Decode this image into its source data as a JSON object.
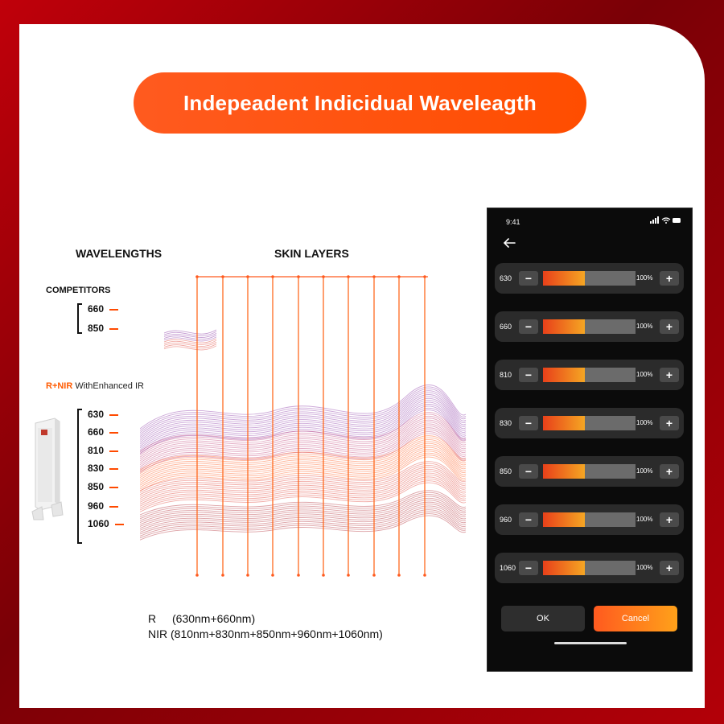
{
  "title": "Indepeadent Indicidual Waveleagth",
  "headers": {
    "wavelengths": "WAVELENGTHS",
    "skin_layers": "SKIN LAYERS"
  },
  "competitors": {
    "title": "COMPETITORS",
    "items": [
      "660",
      "850"
    ]
  },
  "rnir": {
    "accent": "R+NIR",
    "rest": " WithEnhanced IR",
    "items": [
      "630",
      "660",
      "810",
      "830",
      "850",
      "960",
      "1060"
    ]
  },
  "legend": {
    "r_label": "R",
    "r_text": "(630nm+660nm)",
    "nir_text": "NIR (810nm+830nm+850nm+960nm+1060nm)"
  },
  "phone": {
    "time": "9:41",
    "back_icon": "arrow-left-icon",
    "rows": [
      {
        "name": "630",
        "percent": "100%",
        "level": 0.45
      },
      {
        "name": "660",
        "percent": "100%",
        "level": 0.45
      },
      {
        "name": "810",
        "percent": "100%",
        "level": 0.45
      },
      {
        "name": "830",
        "percent": "100%",
        "level": 0.45
      },
      {
        "name": "850",
        "percent": "100%",
        "level": 0.45
      },
      {
        "name": "960",
        "percent": "100%",
        "level": 0.45
      },
      {
        "name": "1060",
        "percent": "100%",
        "level": 0.45
      }
    ],
    "ok_label": "OK",
    "cancel_label": "Cancel"
  },
  "colors": {
    "accent": "#ff5a00",
    "background": "#b30008",
    "phone_bg": "#0b0b0b",
    "row_bg": "#2b2b2b"
  }
}
